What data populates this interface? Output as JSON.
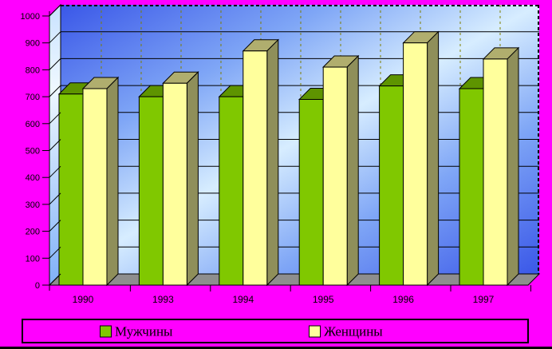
{
  "chart_data": {
    "type": "bar",
    "projection": "3d",
    "title": "",
    "xlabel": "",
    "ylabel": "",
    "categories": [
      "1990",
      "1993",
      "1994",
      "1995",
      "1996",
      "1997"
    ],
    "series": [
      {
        "name": "Мужчины",
        "color": "#80C800",
        "top_color": "#5E9400",
        "values": [
          710,
          700,
          700,
          690,
          740,
          730
        ]
      },
      {
        "name": "Женщины",
        "color": "#FFFF9C",
        "top_color": "#B0AE6E",
        "side_color": "#8F8F5A",
        "values": [
          730,
          750,
          870,
          810,
          900,
          840
        ]
      }
    ],
    "ylim": [
      0,
      1000
    ],
    "y_ticks": [
      0,
      100,
      200,
      300,
      400,
      500,
      600,
      700,
      800,
      900,
      1000
    ],
    "grid": true,
    "legend_position": "bottom",
    "colors": {
      "background": "#FF00FF",
      "wall_dark": "#3A57E8",
      "wall_mid": "#7FA6F6",
      "wall_light": "#D7EDFF",
      "left_wall_top": "#C8E2FF",
      "left_wall_mid": "#EFF8FF",
      "left_wall_bottom": "#7FB0F8",
      "floor": "#8E8E8E",
      "gridline": "#000000",
      "category_dash": "#7F7F00",
      "text": "#000000"
    }
  }
}
